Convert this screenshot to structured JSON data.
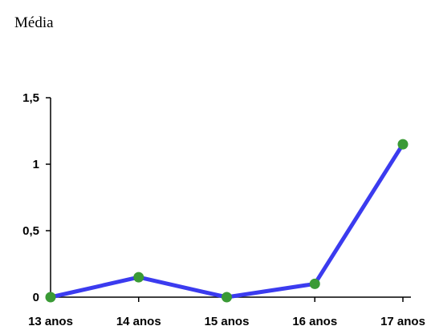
{
  "chart_data": {
    "type": "line",
    "title": "Média",
    "categories": [
      "13 anos",
      "14 anos",
      "15 anos",
      "16 anos",
      "17 anos"
    ],
    "series": [
      {
        "values": [
          0,
          0.15,
          0,
          0.1,
          1.15
        ]
      }
    ],
    "yticks": [
      "0",
      "0,5",
      "1",
      "1,5"
    ],
    "ylim": [
      0,
      1.5
    ],
    "grid": false,
    "line_color": "#3b3bef",
    "marker_color": "#3a9a35",
    "xlabel": "",
    "ylabel": ""
  }
}
